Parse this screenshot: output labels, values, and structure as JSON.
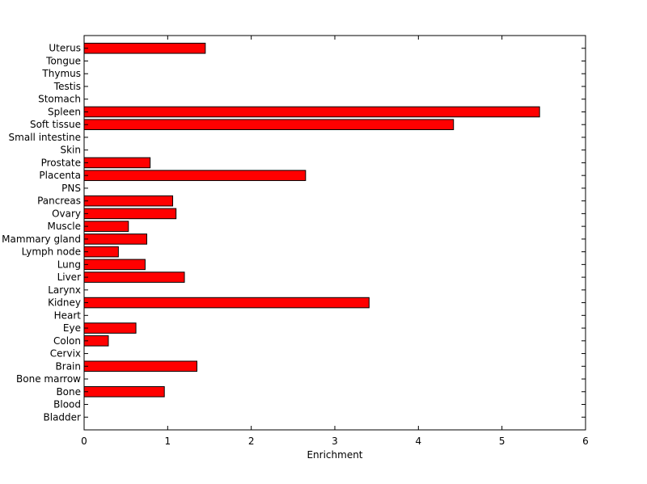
{
  "chart_data": {
    "type": "bar",
    "orientation": "horizontal",
    "title": "",
    "xlabel": "Enrichment",
    "ylabel": "",
    "xlim": [
      0,
      6
    ],
    "xticks": [
      "0",
      "1",
      "2",
      "3",
      "4",
      "5",
      "6"
    ],
    "grid": false,
    "bar_color": "#ff0000",
    "categories": [
      "Uterus",
      "Tongue",
      "Thymus",
      "Testis",
      "Stomach",
      "Spleen",
      "Soft tissue",
      "Small intestine",
      "Skin",
      "Prostate",
      "Placenta",
      "PNS",
      "Pancreas",
      "Ovary",
      "Muscle",
      "Mammary gland",
      "Lymph node",
      "Lung",
      "Liver",
      "Larynx",
      "Kidney",
      "Heart",
      "Eye",
      "Colon",
      "Cervix",
      "Brain",
      "Bone marrow",
      "Bone",
      "Blood",
      "Bladder"
    ],
    "values": [
      1.45,
      0,
      0,
      0,
      0,
      5.45,
      4.42,
      0,
      0,
      0.79,
      2.65,
      0,
      1.06,
      1.1,
      0.53,
      0.75,
      0.41,
      0.73,
      1.2,
      0,
      3.41,
      0,
      0.62,
      0.29,
      0,
      1.35,
      0,
      0.96,
      0,
      0
    ]
  }
}
